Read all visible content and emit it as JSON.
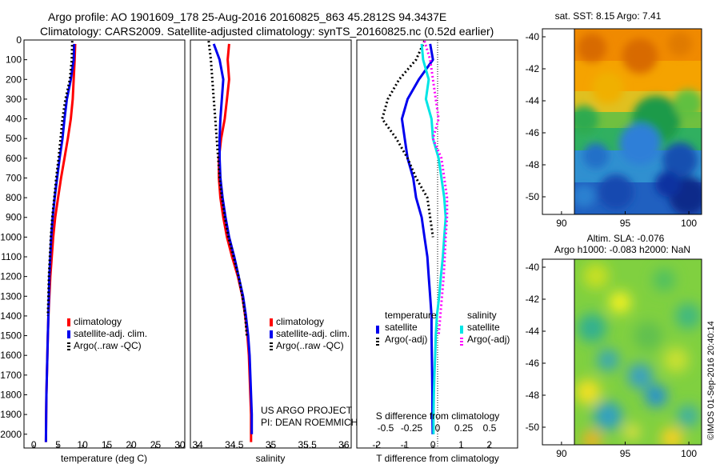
{
  "header": {
    "line1": "Argo profile: AO 1901609_178 25-Aug-2016 20160825_863 45.2812S 94.3437E",
    "line2": "Climatology: CARS2009. Satellite-adjusted climatology: synTS_20160825.nc (0.52d earlier)"
  },
  "colors": {
    "climatology": "#ff0000",
    "satellite_adj": "#0000ee",
    "argo": "#000000",
    "satellite": "#00e5e5",
    "argo_adj_salinity": "#ff00ff"
  },
  "chart_data": [
    {
      "id": "temperature",
      "type": "line",
      "xlabel": "temperature (deg C)",
      "ylabel": "",
      "xlim": [
        -2,
        31
      ],
      "ylim": [
        2070,
        0
      ],
      "xticks": [
        "0",
        "5",
        "10",
        "15",
        "20",
        "25",
        "30"
      ],
      "yticks": [
        "0",
        "100",
        "200",
        "300",
        "400",
        "500",
        "600",
        "700",
        "800",
        "900",
        "1000",
        "1100",
        "1200",
        "1300",
        "1400",
        "1500",
        "1600",
        "1700",
        "1800",
        "1900",
        "2000"
      ],
      "legend": [
        "climatology",
        "satellite-adj. clim.",
        "Argo(..raw -QC)"
      ],
      "series": [
        {
          "name": "climatology",
          "color": "#ff0000",
          "x": [
            8.5,
            8.4,
            8.2,
            8.0,
            7.6,
            7.0,
            6.3,
            5.6,
            5.0,
            4.4,
            4.0,
            3.7,
            3.4,
            3.2,
            3.0,
            2.9,
            2.8,
            2.7,
            2.6,
            2.55,
            2.5
          ],
          "y": [
            20,
            100,
            200,
            300,
            400,
            500,
            600,
            700,
            800,
            900,
            1000,
            1100,
            1200,
            1300,
            1400,
            1500,
            1600,
            1700,
            1800,
            1900,
            2040
          ]
        },
        {
          "name": "satellite-adj. clim.",
          "color": "#0000ee",
          "x": [
            8.3,
            8.2,
            7.6,
            6.8,
            6.3,
            5.9,
            5.3,
            4.8,
            4.3,
            3.9,
            3.6,
            3.4,
            3.2,
            3.1,
            3.0,
            2.9,
            2.8,
            2.7,
            2.6,
            2.55,
            2.5
          ],
          "y": [
            20,
            100,
            200,
            300,
            400,
            500,
            600,
            700,
            800,
            900,
            1000,
            1100,
            1200,
            1300,
            1400,
            1500,
            1600,
            1700,
            1800,
            1900,
            2040
          ]
        },
        {
          "name": "Argo(..raw -QC)",
          "color": "#000000",
          "dashed": true,
          "x": [
            7.9,
            7.8,
            7.4,
            6.5,
            5.9,
            5.5,
            5.1,
            4.6,
            4.2,
            3.8,
            3.5,
            3.3,
            3.1,
            3.0,
            2.9
          ],
          "y": [
            5,
            100,
            200,
            300,
            400,
            500,
            600,
            700,
            800,
            900,
            1000,
            1100,
            1200,
            1300,
            1400
          ]
        }
      ]
    },
    {
      "id": "salinity",
      "type": "line",
      "xlabel": "salinity",
      "ylabel": "",
      "xlim": [
        33.9,
        36.1
      ],
      "ylim": [
        2070,
        0
      ],
      "xticks": [
        "34",
        "34.5",
        "35",
        "35.5",
        "36"
      ],
      "legend": [
        "climatology",
        "satellite-adj. clim.",
        "Argo(..raw -QC)"
      ],
      "annotation": [
        "US ARGO PROJECT",
        "PI: DEAN ROEMMICH"
      ],
      "series": [
        {
          "name": "climatology",
          "color": "#ff0000",
          "x": [
            34.43,
            34.41,
            34.43,
            34.4,
            34.37,
            34.32,
            34.29,
            34.29,
            34.31,
            34.35,
            34.4,
            34.47,
            34.55,
            34.61,
            34.65,
            34.68,
            34.7,
            34.71,
            34.72,
            34.73,
            34.73
          ],
          "y": [
            20,
            100,
            200,
            300,
            400,
            500,
            600,
            700,
            800,
            900,
            1000,
            1100,
            1200,
            1300,
            1400,
            1500,
            1600,
            1700,
            1800,
            1900,
            2040
          ]
        },
        {
          "name": "satellite-adj. clim.",
          "color": "#0000ee",
          "x": [
            34.22,
            34.3,
            34.35,
            34.33,
            34.31,
            34.3,
            34.3,
            34.31,
            34.34,
            34.38,
            34.43,
            34.5,
            34.56,
            34.62,
            34.66,
            34.69,
            34.71,
            34.72,
            34.73,
            34.74,
            34.74
          ],
          "y": [
            20,
            100,
            200,
            300,
            400,
            500,
            600,
            700,
            800,
            900,
            1000,
            1100,
            1200,
            1300,
            1400,
            1500,
            1600,
            1700,
            1800,
            1900,
            2000
          ]
        },
        {
          "name": "Argo(..raw -QC)",
          "color": "#000000",
          "dashed": true,
          "x": [
            34.15,
            34.18,
            34.2,
            34.22,
            34.24,
            34.26,
            34.28,
            34.3,
            34.33,
            34.37,
            34.42,
            34.49,
            34.56,
            34.61,
            34.65,
            34.67
          ],
          "y": [
            5,
            100,
            200,
            300,
            400,
            500,
            600,
            700,
            800,
            900,
            1000,
            1100,
            1200,
            1300,
            1400,
            1500
          ]
        }
      ]
    },
    {
      "id": "difference",
      "type": "line",
      "xlabel": "T difference from climatology",
      "xlabel_top": "S difference from climatology",
      "ylabel": "",
      "xlim": [
        -2.7,
        3.0
      ],
      "ylim": [
        2070,
        0
      ],
      "xticks": [
        "-2",
        "-1",
        "0",
        "1",
        "2"
      ],
      "xticks_top": [
        "-0.5",
        "-0.25",
        "0",
        "0.25",
        "0.5"
      ],
      "legend_temperature_title": "temperature",
      "legend_salinity_title": "salinity",
      "legend_temperature": [
        "satellite",
        "Argo(-adj)"
      ],
      "legend_salinity": [
        "satellite",
        "Argo(-adj)"
      ],
      "series": [
        {
          "name": "temperature satellite",
          "color": "#0000ee",
          "x": [
            -0.1,
            0.0,
            -0.5,
            -0.9,
            -1.1,
            -1.0,
            -0.9,
            -0.7,
            -0.6,
            -0.4,
            -0.3,
            -0.2,
            -0.15,
            -0.1,
            -0.05,
            -0.05,
            -0.04,
            -0.03,
            -0.02,
            -0.02,
            -0.01
          ],
          "y": [
            20,
            100,
            200,
            300,
            400,
            500,
            600,
            700,
            800,
            900,
            1000,
            1100,
            1200,
            1300,
            1400,
            1500,
            1600,
            1700,
            1800,
            1900,
            2000
          ]
        },
        {
          "name": "temperature Argo(-adj)",
          "color": "#000000",
          "dashed": true,
          "x": [
            -0.3,
            -0.6,
            -1.2,
            -1.6,
            -1.8,
            -1.3,
            -0.9,
            -0.6,
            -0.2,
            -0.1,
            0.0
          ],
          "y": [
            5,
            100,
            200,
            300,
            400,
            500,
            600,
            700,
            800,
            900,
            1000
          ]
        },
        {
          "name": "salinity satellite",
          "color": "#00e5e5",
          "x": [
            -0.4,
            -0.35,
            -0.15,
            -0.25,
            -0.05,
            0.0,
            0.2,
            0.3,
            0.4,
            0.45,
            0.4,
            0.35,
            0.28,
            0.22,
            0.14,
            0.1,
            0.08,
            0.05,
            0.03,
            0.02,
            0.02
          ],
          "y": [
            20,
            100,
            200,
            300,
            400,
            500,
            600,
            700,
            800,
            900,
            1000,
            1100,
            1200,
            1300,
            1400,
            1500,
            1600,
            1700,
            1800,
            1900,
            2000
          ]
        },
        {
          "name": "salinity Argo(-adj)",
          "color": "#ff00ff",
          "dashed": true,
          "x": [
            -0.3,
            -0.1,
            0.0,
            0.1,
            0.2,
            0.0,
            0.3,
            0.4,
            0.5,
            0.5,
            0.45,
            0.42,
            0.38,
            0.32,
            0.26,
            0.2
          ],
          "y": [
            5,
            100,
            200,
            300,
            400,
            500,
            600,
            700,
            800,
            900,
            1000,
            1100,
            1200,
            1300,
            1400,
            1500
          ]
        }
      ]
    },
    {
      "id": "sst-map",
      "type": "heatmap",
      "title": "sat. SST: 8.15 Argo: 7.41",
      "xlim": [
        88.5,
        101
      ],
      "ylim": [
        -51.1,
        -39.5
      ],
      "xticks": [
        "90",
        "95",
        "100"
      ],
      "yticks": [
        "-40",
        "-42",
        "-44",
        "-46",
        "-48",
        "-50"
      ]
    },
    {
      "id": "sla-map",
      "type": "heatmap",
      "title_line1": "Altim. SLA: -0.076",
      "title_line2": "Argo h1000: -0.083 h2000: NaN",
      "xlim": [
        88.5,
        101
      ],
      "ylim": [
        -51.1,
        -39.5
      ],
      "xticks": [
        "90",
        "95",
        "100"
      ],
      "yticks": [
        "-40",
        "-42",
        "-44",
        "-46",
        "-48",
        "-50"
      ]
    }
  ],
  "watermark": "©IMOS 01-Sep-2016 20:40:14"
}
